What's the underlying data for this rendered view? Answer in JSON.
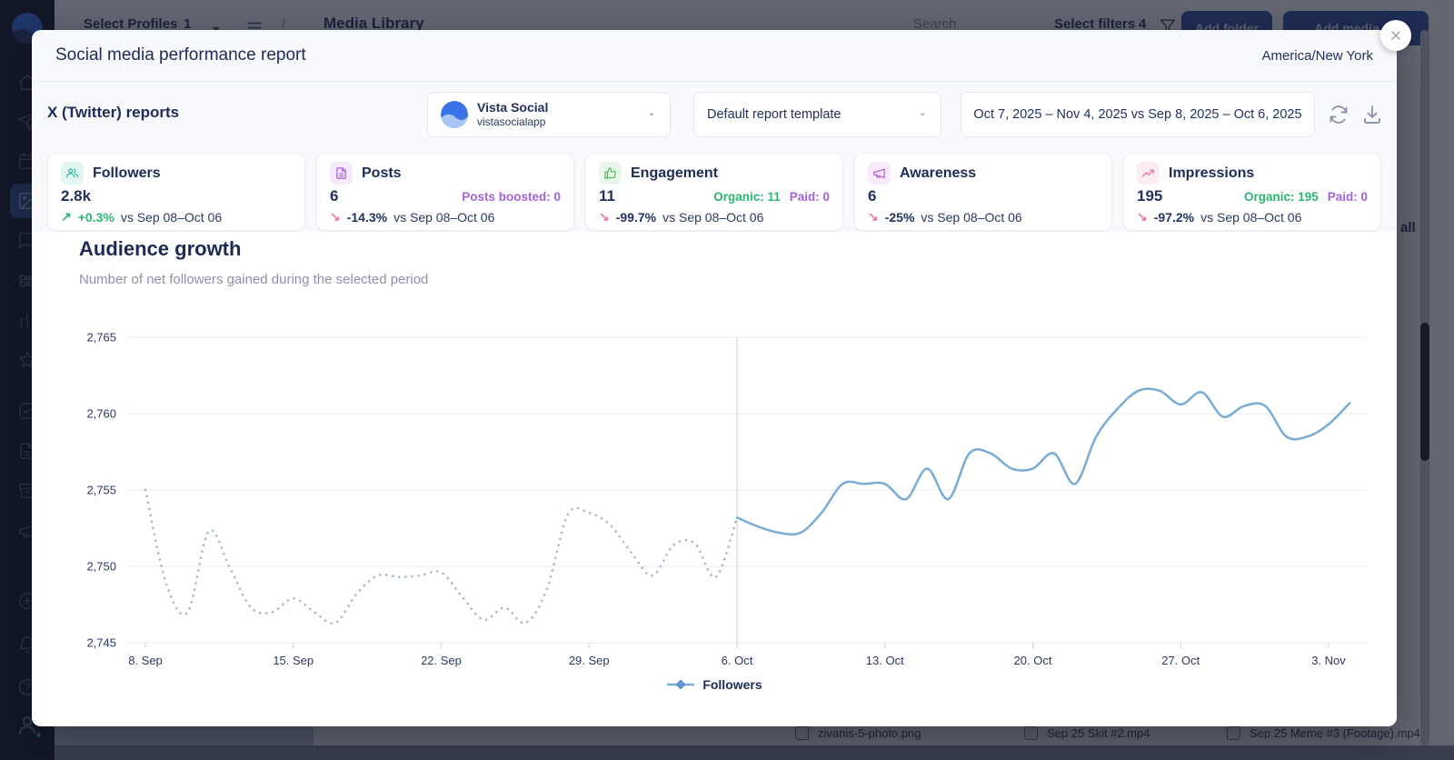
{
  "backdrop": {
    "sidebar": {
      "icons_top": [
        "home",
        "send",
        "calendar",
        "image",
        "chat",
        "orbit",
        "bars",
        "star",
        "check-square",
        "file-text",
        "archive",
        "bullhorn"
      ],
      "active_icon": "image",
      "icons_bottom": [
        "plus-circle",
        "bell",
        "help-circle"
      ]
    },
    "topbar": {
      "select_profiles_label": "Select Profiles",
      "profiles_count": "1",
      "breadcrumb_separator": "/",
      "page_title": "Media Library",
      "search_placeholder": "Search",
      "select_filters_label": "Select filters",
      "filters_count": "4",
      "add_folder_label": "Add folder",
      "add_media_label": "Add media"
    },
    "partial_text_right": "all",
    "bottom_files": [
      "zivanis-5-photo.png",
      "Sep 25 Skit #2.mp4",
      "Sep 25 Meme #3 (Footage).mp4"
    ]
  },
  "modal": {
    "title": "Social media performance report",
    "timezone": "America/New York",
    "reports_heading": "X (Twitter) reports",
    "profile_selector": {
      "name": "Vista Social",
      "handle": "vistasocialapp"
    },
    "template_selector": {
      "value": "Default report template"
    },
    "date_range": {
      "value": "Oct 7, 2025 – Nov 4, 2025 vs Sep 8, 2025 – Oct 6, 2025"
    },
    "metric_cards": [
      {
        "icon": "users",
        "accent": "#35b9a6",
        "icon_bg": "#e1f5f1",
        "title": "Followers",
        "value": "2.8k",
        "extras": [],
        "delta": "+0.3%",
        "direction": "up",
        "compare": "vs Sep 08–Oct 06"
      },
      {
        "icon": "file-text",
        "accent": "#a562dd",
        "icon_bg": "#f4eafc",
        "title": "Posts",
        "value": "6",
        "extras": [
          {
            "text": "Posts boosted: 0",
            "color": "#a562dd"
          }
        ],
        "delta": "-14.3%",
        "direction": "down",
        "compare": "vs Sep 08–Oct 06"
      },
      {
        "icon": "thumbs-up",
        "accent": "#56b75f",
        "icon_bg": "#e9f7ea",
        "title": "Engagement",
        "value": "11",
        "extras": [
          {
            "text": "Organic: 11",
            "color": "#2bb673"
          },
          {
            "text": "Paid: 0",
            "color": "#a562dd"
          }
        ],
        "delta": "-99.7%",
        "direction": "down",
        "compare": "vs Sep 08–Oct 06"
      },
      {
        "icon": "bullhorn",
        "accent": "#bb5fd6",
        "icon_bg": "#f6eafb",
        "title": "Awareness",
        "value": "6",
        "extras": [],
        "delta": "-25%",
        "direction": "down",
        "compare": "vs Sep 08–Oct 06"
      },
      {
        "icon": "trend",
        "accent": "#ed6ba2",
        "icon_bg": "#fdecf3",
        "title": "Impressions",
        "value": "195",
        "extras": [
          {
            "text": "Organic: 195",
            "color": "#2bb673"
          },
          {
            "text": "Paid: 0",
            "color": "#a562dd"
          }
        ],
        "delta": "-97.2%",
        "direction": "down",
        "compare": "vs Sep 08–Oct 06"
      }
    ],
    "section": {
      "title": "Audience growth",
      "subtitle": "Number of net followers gained during the selected period"
    }
  },
  "chart_data": {
    "type": "line",
    "title": "Audience growth",
    "subtitle": "Number of net followers gained during the selected period",
    "xlabel": "",
    "ylabel": "",
    "ylim": [
      2745,
      2765
    ],
    "grid": true,
    "legend_position": "bottom",
    "legend": [
      {
        "label": "Followers",
        "color": "#78abd6"
      }
    ],
    "yticks": [
      {
        "value": 2745,
        "label": "2,745"
      },
      {
        "value": 2750,
        "label": "2,750"
      },
      {
        "value": 2755,
        "label": "2,755"
      },
      {
        "value": 2760,
        "label": "2,760"
      },
      {
        "value": 2765,
        "label": "2,765"
      }
    ],
    "x_ticks": [
      {
        "day": 0,
        "label": "8. Sep"
      },
      {
        "day": 7,
        "label": "15. Sep"
      },
      {
        "day": 14,
        "label": "22. Sep"
      },
      {
        "day": 21,
        "label": "29. Sep"
      },
      {
        "day": 28,
        "label": "6. Oct"
      },
      {
        "day": 35,
        "label": "13. Oct"
      },
      {
        "day": 42,
        "label": "20. Oct"
      },
      {
        "day": 49,
        "label": "27. Oct"
      },
      {
        "day": 56,
        "label": "3. Nov"
      }
    ],
    "total_days": 57,
    "period_divider_day": 28,
    "series": [
      {
        "name": "Followers — comparison period (Sep 8 – Oct 6, 2025)",
        "style": "dotted",
        "color": "#a5b7c8",
        "start_day": 0,
        "values": [
          2755,
          2748.8,
          2747,
          2752.3,
          2749.9,
          2747.3,
          2747,
          2747.9,
          2747,
          2746.3,
          2748.2,
          2749.4,
          2749.3,
          2749.4,
          2749.6,
          2748,
          2746.5,
          2747.3,
          2746.3,
          2748.5,
          2753.4,
          2753.5,
          2752.7,
          2750.9,
          2749.4,
          2751.4,
          2751.5,
          2749.3,
          2753.2
        ]
      },
      {
        "name": "Followers — current period (Oct 7 – Nov 4, 2025)",
        "style": "solid",
        "color": "#78abd6",
        "start_day": 28,
        "values": [
          2753.2,
          2752.6,
          2752.2,
          2752.2,
          2753.5,
          2755.4,
          2755.4,
          2755.4,
          2754.4,
          2756.4,
          2754.4,
          2757.4,
          2757.4,
          2756.4,
          2756.4,
          2757.4,
          2755.4,
          2758.5,
          2760.3,
          2761.5,
          2761.5,
          2760.6,
          2761.4,
          2759.8,
          2760.5,
          2760.5,
          2758.5,
          2758.5,
          2759.3,
          2760.7
        ]
      }
    ]
  }
}
